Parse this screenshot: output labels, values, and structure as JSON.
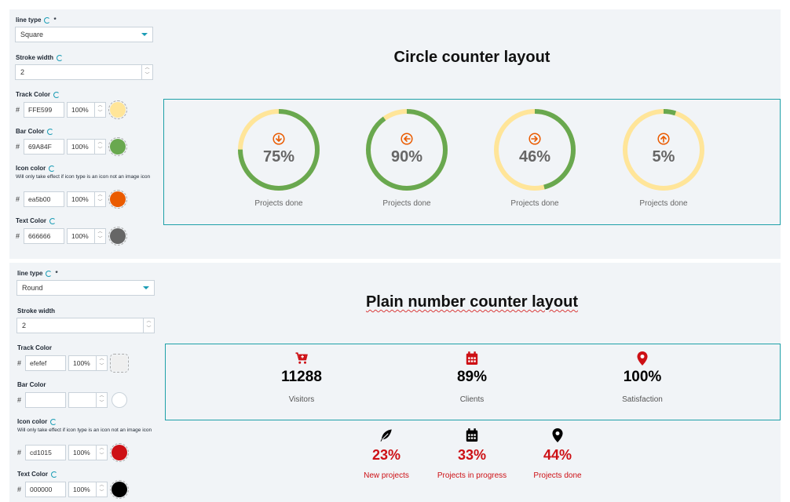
{
  "panel1": {
    "line_type_label": "line type",
    "required_mark": "*",
    "line_type_value": "Square",
    "stroke_width_label": "Stroke width",
    "stroke_width_value": "2",
    "track_color_label": "Track Color",
    "track_color_hex": "FFE599",
    "track_color_opacity": "100%",
    "track_color_swatch": "#FFE599",
    "bar_color_label": "Bar Color",
    "bar_color_hex": "69A84F",
    "bar_color_opacity": "100%",
    "bar_color_swatch": "#69A84F",
    "icon_color_label": "Icon color",
    "icon_color_note": "Will only take effect if icon type is an icon not an image icon",
    "icon_color_hex": "ea5b00",
    "icon_color_opacity": "100%",
    "icon_color_swatch": "#ea5b00",
    "text_color_label": "Text Color",
    "text_color_hex": "666666",
    "text_color_opacity": "100%",
    "text_color_swatch": "#666666",
    "hash": "#"
  },
  "circle_section": {
    "title": "Circle counter layout",
    "items": [
      {
        "percent": "75%",
        "value": 75,
        "caption": "Projects done",
        "icon": "arrow-down-circle-icon"
      },
      {
        "percent": "90%",
        "value": 90,
        "caption": "Projects done",
        "icon": "arrow-left-circle-icon"
      },
      {
        "percent": "46%",
        "value": 46,
        "caption": "Projects done",
        "icon": "arrow-right-circle-icon"
      },
      {
        "percent": "5%",
        "value": 5,
        "caption": "Projects done",
        "icon": "arrow-up-circle-icon"
      }
    ]
  },
  "panel2": {
    "line_type_label": "line type",
    "required_mark": "*",
    "line_type_value": "Round",
    "stroke_width_label": "Stroke width",
    "stroke_width_value": "2",
    "track_color_label": "Track Color",
    "track_color_hex": "efefef",
    "track_color_opacity": "100%",
    "track_color_swatch": "#efefef",
    "bar_color_label": "Bar Color",
    "bar_color_hex": "",
    "bar_color_opacity": "",
    "bar_color_swatch": "#ffffff",
    "icon_color_label": "Icon color",
    "icon_color_note": "Will only take effect if icon type is an icon not an image icon",
    "icon_color_hex": "cd1015",
    "icon_color_opacity": "100%",
    "icon_color_swatch": "#cd1015",
    "text_color_label": "Text Color",
    "text_color_hex": "000000",
    "text_color_opacity": "100%",
    "text_color_swatch": "#000000",
    "hash": "#"
  },
  "plain_section": {
    "title": "Plain number counter layout",
    "row1": [
      {
        "number": "11288",
        "caption": "Visitors",
        "icon": "cart-plus-icon"
      },
      {
        "number": "89%",
        "caption": "Clients",
        "icon": "calendar-icon"
      },
      {
        "number": "100%",
        "caption": "Satisfaction",
        "icon": "map-pin-icon"
      }
    ],
    "row2": [
      {
        "number": "23%",
        "caption": "New projects",
        "icon": "feather-icon"
      },
      {
        "number": "33%",
        "caption": "Projects in progress",
        "icon": "calendar-icon"
      },
      {
        "number": "44%",
        "caption": "Projects done",
        "icon": "map-pin-icon"
      }
    ]
  },
  "colors": {
    "accent": "#1a9cb5",
    "frame": "#1ea0a8",
    "ring_bar": "#69A84F",
    "ring_track": "#FFE599",
    "ring_icon": "#ea5b00",
    "ring_text": "#666666",
    "plain_icon": "#cd1015"
  }
}
